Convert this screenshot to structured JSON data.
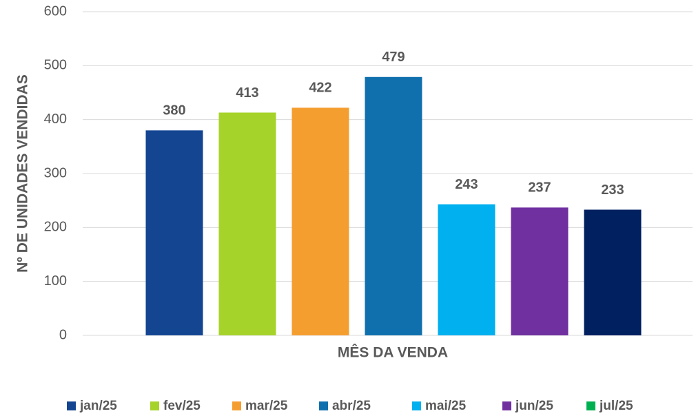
{
  "chart_data": {
    "type": "bar",
    "categories": [
      null
    ],
    "x_label": "MÊS DA VENDA",
    "y_label": "Nº DE UNIDADES VENDIDAS",
    "ylim": [
      0,
      600
    ],
    "yticks": [
      0,
      100,
      200,
      300,
      400,
      500,
      600
    ],
    "grid": true,
    "legend": "bottom",
    "series": [
      {
        "name": "jan/25",
        "color": "#134591",
        "values": [
          380
        ]
      },
      {
        "name": "fev/25",
        "color": "#a6d329",
        "values": [
          413
        ]
      },
      {
        "name": "mar/25",
        "color": "#f59e30",
        "values": [
          422
        ]
      },
      {
        "name": "abr/25",
        "color": "#1070ad",
        "values": [
          479
        ]
      },
      {
        "name": "mai/25",
        "color": "#00b0ef",
        "values": [
          243
        ]
      },
      {
        "name": "jun/25",
        "color": "#7030a0",
        "values": [
          237
        ]
      },
      {
        "name": "jul/25",
        "color": "#00b050",
        "point_colors": [
          "#002060"
        ],
        "values": [
          233
        ]
      }
    ]
  }
}
